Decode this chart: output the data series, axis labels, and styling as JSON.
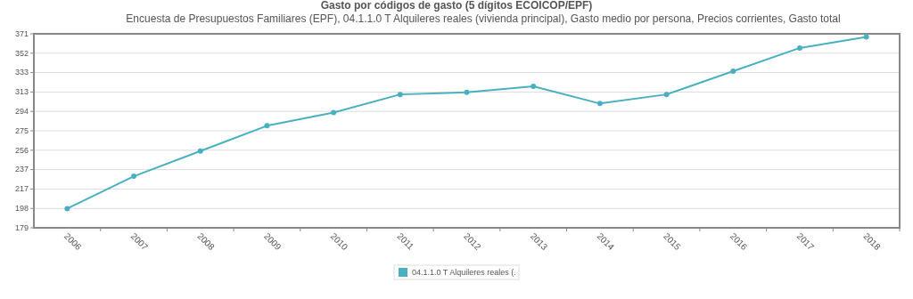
{
  "chart_data": {
    "type": "line",
    "title": "Gasto por códigos de gasto (5 dígitos ECOICOP/EPF)",
    "subtitle": "Encuesta de Presupuestos Familiares (EPF), 04.1.1.0 T Alquileres reales (vivienda principal), Gasto medio por persona, Precios corrientes, Gasto total",
    "categories": [
      "2006",
      "2007",
      "2008",
      "2009",
      "2010",
      "2011",
      "2012",
      "2013",
      "2014",
      "2015",
      "2016",
      "2017",
      "2018"
    ],
    "series": [
      {
        "name": "04.1.1.0 T Alquileres reales (.",
        "color": "#4ab0c1",
        "values": [
          198,
          230,
          255,
          280,
          293,
          311,
          313,
          319,
          302,
          311,
          334,
          357,
          368
        ]
      }
    ],
    "ylim": [
      179,
      371
    ],
    "yticks": [
      179,
      {
        "value": 198.2,
        "label": "198"
      },
      {
        "value": 217.4,
        "label": "217"
      },
      {
        "value": 236.6,
        "label": "237"
      },
      {
        "value": 255.8,
        "label": "256"
      },
      275,
      {
        "value": 294.2,
        "label": "294"
      },
      {
        "value": 313.4,
        "label": "313"
      },
      {
        "value": 332.6,
        "label": "333"
      },
      {
        "value": 351.8,
        "label": "352"
      },
      371
    ],
    "grid": "y",
    "legend": "bottom",
    "marker": "circle",
    "line_style": "solid"
  }
}
